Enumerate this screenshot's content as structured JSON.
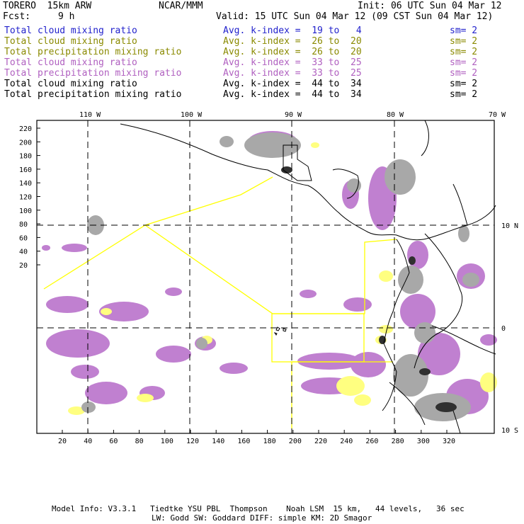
{
  "header": {
    "model": "TORERO  15km ARW",
    "center": "NCAR/MMM",
    "init": "Init: 06 UTC Sun 04 Mar 12",
    "fcst_label": "Fcst:",
    "fcst_value": "9 h",
    "valid": "Valid: 15 UTC Sun 04 Mar 12 (09 CST Sun 04 Mar 12)"
  },
  "legend": [
    {
      "field": "Total cloud mixing ratio",
      "kindex": "Avg. k-index =  19 to   4",
      "sm": "sm= 2",
      "color": "#2222cc"
    },
    {
      "field": "Total cloud mixing ratio",
      "kindex": "Avg. k-index =  26 to  20",
      "sm": "sm= 2",
      "color": "#8a8a00"
    },
    {
      "field": "Total precipitation mixing ratio",
      "kindex": "Avg. k-index =  26 to  20",
      "sm": "sm= 2",
      "color": "#8a8a00"
    },
    {
      "field": "Total cloud mixing ratio",
      "kindex": "Avg. k-index =  33 to  25",
      "sm": "sm= 2",
      "color": "#b060c0"
    },
    {
      "field": "Total precipitation mixing ratio",
      "kindex": "Avg. k-index =  33 to  25",
      "sm": "sm= 2",
      "color": "#b060c0"
    },
    {
      "field": "Total cloud mixing ratio",
      "kindex": "Avg. k-index =  44 to  34",
      "sm": "sm= 2",
      "color": "#000000"
    },
    {
      "field": "Total precipitation mixing ratio",
      "kindex": "Avg. k-index =  44 to  34",
      "sm": "sm= 2",
      "color": "#000000"
    }
  ],
  "map": {
    "lon_labels": [
      "110 W",
      "100 W",
      "90 W",
      "80 W",
      "70 W"
    ],
    "lat_labels": [
      "10 N",
      "0",
      "10 S"
    ],
    "y_ticks": [
      "220",
      "200",
      "180",
      "160",
      "140",
      "120",
      "100",
      "80",
      "60",
      "40",
      "20"
    ],
    "x_ticks": [
      "20",
      "40",
      "60",
      "80",
      "100",
      "120",
      "140",
      "160",
      "180",
      "200",
      "220",
      "240",
      "260",
      "280",
      "300",
      "320"
    ],
    "colors": {
      "cloud_low": "#ffff80",
      "cloud_mid": "#c080d0",
      "cloud_high": "#a8a8a8",
      "cloud_core": "#303030",
      "boundary": "#ffff00",
      "coast": "#000000"
    }
  },
  "footer": {
    "line1": "Model Info: V3.3.1   Tiedtke YSU PBL  Thompson    Noah LSM  15 km,   44 levels,   36 sec",
    "line2": "LW: Godd SW: Goddard DIFF: simple KM: 2D Smagor"
  }
}
